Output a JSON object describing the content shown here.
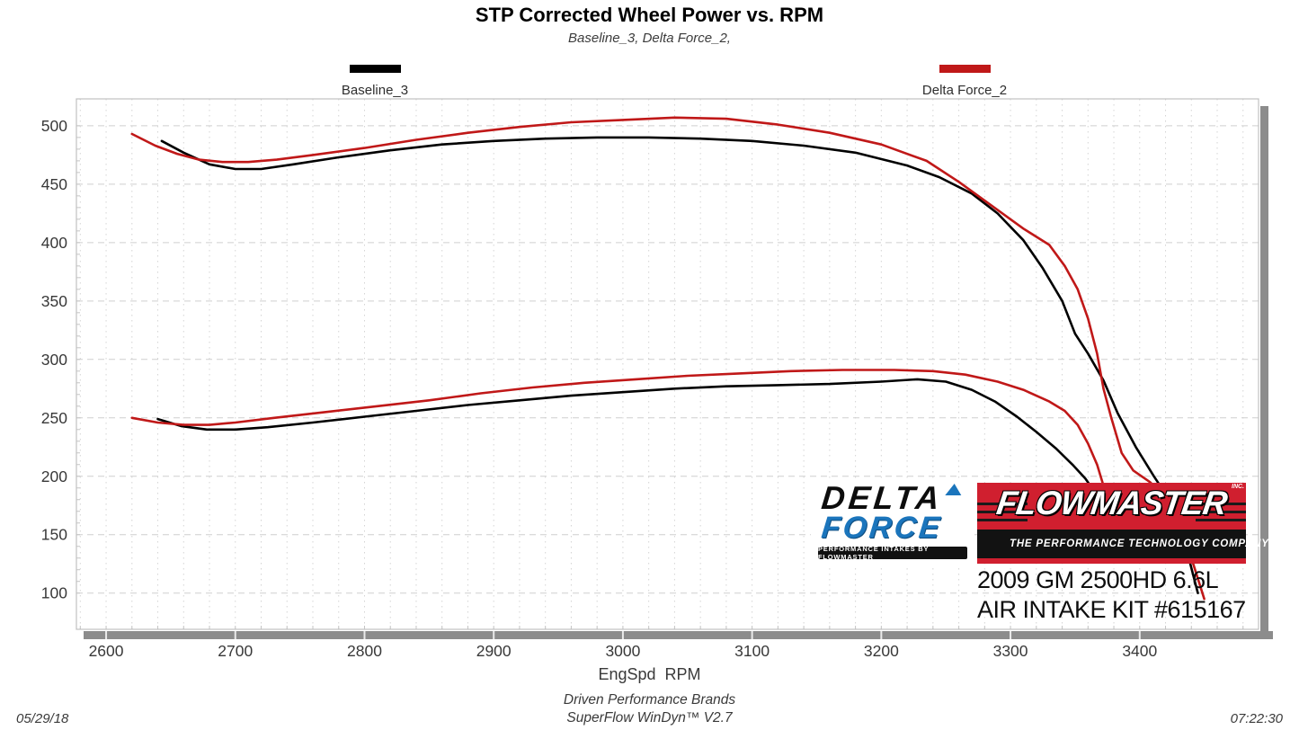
{
  "title": "STP Corrected Wheel Power vs. RPM",
  "subtitle": "Baseline_3, Delta Force_2,",
  "legend": {
    "items": [
      {
        "label": "Baseline_3",
        "color": "#000000"
      },
      {
        "label": "Delta Force_2",
        "color": "#c01818"
      }
    ]
  },
  "branding": {
    "delta_force": {
      "word1": "DELTA",
      "word2": "FORCE",
      "tagline": "PERFORMANCE INTAKES BY FLOWMASTER",
      "blue": "#1b75bc"
    },
    "flowmaster": {
      "name": "FLOWMASTER",
      "inc": "INC.",
      "tagline": "THE PERFORMANCE TECHNOLOGY COMPANY",
      "red": "#d01f2f"
    },
    "vehicle_line1": "2009 GM 2500HD 6.6L",
    "vehicle_line2": "AIR INTAKE KIT #615167"
  },
  "footer": {
    "date": "05/29/18",
    "brand_line": "Driven Performance Brands",
    "software_line": "SuperFlow WinDyn™ V2.7",
    "time": "07:22:30"
  },
  "chart_data": {
    "type": "line",
    "title": "STP Corrected Wheel Power vs. RPM",
    "subtitle": "Baseline_3, Delta Force_2,",
    "xlabel": "EngSpd  RPM",
    "ylabel": "",
    "xlim": [
      2577,
      3492
    ],
    "ylim": [
      69,
      523
    ],
    "x_ticks": [
      2600,
      2700,
      2800,
      2900,
      3000,
      3100,
      3200,
      3300,
      3400
    ],
    "y_ticks": [
      100,
      150,
      200,
      250,
      300,
      350,
      400,
      450,
      500
    ],
    "grid": {
      "x_minor_step": 20,
      "y_major_step": 50,
      "y_minor_tick_step": 10,
      "style": "dotted/dashed light gray"
    },
    "legend_position": "top",
    "colors": {
      "baseline": "#000000",
      "delta_force": "#c01818",
      "shadow": "#8c8c8c",
      "grid": "#d4d4d4",
      "frame": "#c0c0c0"
    },
    "series": [
      {
        "name": "Baseline_3",
        "trace": "upper",
        "color": "#000000",
        "points": [
          [
            2643,
            487
          ],
          [
            2660,
            477
          ],
          [
            2680,
            467
          ],
          [
            2700,
            463
          ],
          [
            2720,
            463
          ],
          [
            2745,
            467
          ],
          [
            2780,
            473
          ],
          [
            2820,
            479
          ],
          [
            2860,
            484
          ],
          [
            2900,
            487
          ],
          [
            2940,
            489
          ],
          [
            2980,
            490
          ],
          [
            3020,
            490
          ],
          [
            3060,
            489
          ],
          [
            3100,
            487
          ],
          [
            3140,
            483
          ],
          [
            3180,
            477
          ],
          [
            3220,
            466
          ],
          [
            3245,
            456
          ],
          [
            3270,
            442
          ],
          [
            3290,
            425
          ],
          [
            3310,
            402
          ],
          [
            3325,
            378
          ],
          [
            3340,
            350
          ],
          [
            3350,
            322
          ],
          [
            3360,
            305
          ],
          [
            3372,
            282
          ],
          [
            3383,
            254
          ],
          [
            3397,
            225
          ],
          [
            3411,
            200
          ],
          [
            3420,
            185
          ],
          [
            3430,
            160
          ],
          [
            3438,
            130
          ],
          [
            3445,
            100
          ]
        ]
      },
      {
        "name": "Baseline_3",
        "trace": "lower",
        "color": "#000000",
        "points": [
          [
            2640,
            249
          ],
          [
            2658,
            243
          ],
          [
            2678,
            240
          ],
          [
            2700,
            240
          ],
          [
            2725,
            242
          ],
          [
            2760,
            246
          ],
          [
            2800,
            251
          ],
          [
            2840,
            256
          ],
          [
            2880,
            261
          ],
          [
            2920,
            265
          ],
          [
            2960,
            269
          ],
          [
            3000,
            272
          ],
          [
            3040,
            275
          ],
          [
            3080,
            277
          ],
          [
            3120,
            278
          ],
          [
            3160,
            279
          ],
          [
            3200,
            281
          ],
          [
            3228,
            283
          ],
          [
            3250,
            281
          ],
          [
            3270,
            274
          ],
          [
            3288,
            264
          ],
          [
            3305,
            251
          ],
          [
            3320,
            238
          ],
          [
            3335,
            224
          ],
          [
            3348,
            210
          ],
          [
            3358,
            198
          ],
          [
            3368,
            182
          ],
          [
            3376,
            163
          ],
          [
            3382,
            150
          ]
        ]
      },
      {
        "name": "Delta Force_2",
        "trace": "upper",
        "color": "#c01818",
        "points": [
          [
            2620,
            493
          ],
          [
            2638,
            483
          ],
          [
            2655,
            476
          ],
          [
            2672,
            471
          ],
          [
            2690,
            469
          ],
          [
            2710,
            469
          ],
          [
            2732,
            471
          ],
          [
            2760,
            475
          ],
          [
            2800,
            481
          ],
          [
            2840,
            488
          ],
          [
            2880,
            494
          ],
          [
            2920,
            499
          ],
          [
            2960,
            503
          ],
          [
            3000,
            505
          ],
          [
            3040,
            507
          ],
          [
            3080,
            506
          ],
          [
            3120,
            501
          ],
          [
            3160,
            494
          ],
          [
            3200,
            484
          ],
          [
            3235,
            470
          ],
          [
            3260,
            452
          ],
          [
            3285,
            432
          ],
          [
            3310,
            412
          ],
          [
            3330,
            398
          ],
          [
            3342,
            380
          ],
          [
            3352,
            360
          ],
          [
            3360,
            335
          ],
          [
            3367,
            305
          ],
          [
            3372,
            275
          ],
          [
            3378,
            250
          ],
          [
            3386,
            220
          ],
          [
            3395,
            205
          ],
          [
            3408,
            195
          ],
          [
            3420,
            182
          ],
          [
            3430,
            160
          ],
          [
            3440,
            130
          ],
          [
            3450,
            95
          ]
        ]
      },
      {
        "name": "Delta Force_2",
        "trace": "lower",
        "color": "#c01818",
        "points": [
          [
            2620,
            250
          ],
          [
            2640,
            246
          ],
          [
            2660,
            244
          ],
          [
            2680,
            244
          ],
          [
            2700,
            246
          ],
          [
            2730,
            250
          ],
          [
            2770,
            255
          ],
          [
            2810,
            260
          ],
          [
            2850,
            265
          ],
          [
            2890,
            271
          ],
          [
            2930,
            276
          ],
          [
            2970,
            280
          ],
          [
            3010,
            283
          ],
          [
            3050,
            286
          ],
          [
            3090,
            288
          ],
          [
            3130,
            290
          ],
          [
            3170,
            291
          ],
          [
            3210,
            291
          ],
          [
            3240,
            290
          ],
          [
            3265,
            287
          ],
          [
            3290,
            281
          ],
          [
            3310,
            274
          ],
          [
            3330,
            264
          ],
          [
            3342,
            256
          ],
          [
            3352,
            244
          ],
          [
            3360,
            228
          ],
          [
            3367,
            210
          ],
          [
            3372,
            192
          ],
          [
            3378,
            170
          ],
          [
            3383,
            150
          ]
        ]
      }
    ]
  }
}
